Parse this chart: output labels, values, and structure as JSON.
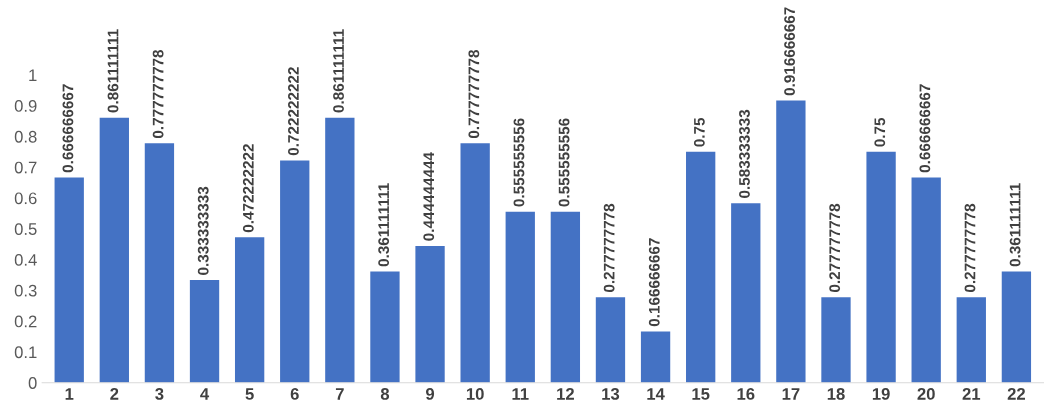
{
  "chart_data": {
    "type": "bar",
    "categories": [
      "1",
      "2",
      "3",
      "4",
      "5",
      "6",
      "7",
      "8",
      "9",
      "10",
      "11",
      "12",
      "13",
      "14",
      "15",
      "16",
      "17",
      "18",
      "19",
      "20",
      "21",
      "22"
    ],
    "values": [
      0.666666667,
      0.861111111,
      0.777777778,
      0.333333333,
      0.472222222,
      0.722222222,
      0.861111111,
      0.361111111,
      0.444444444,
      0.777777778,
      0.555555556,
      0.555555556,
      0.277777778,
      0.166666667,
      0.75,
      0.583333333,
      0.916666667,
      0.277777778,
      0.75,
      0.666666667,
      0.277777778,
      0.361111111
    ],
    "color": "#4472c4",
    "ylim": [
      0,
      1
    ],
    "yticks": [
      0,
      {
        "value": 0.1,
        "label": "0.1"
      },
      {
        "value": 0.2,
        "label": "0.2"
      },
      {
        "value": 0.3,
        "label": "0.3"
      },
      {
        "value": 0.4,
        "label": "0.4"
      },
      {
        "value": 0.5,
        "label": "0.5"
      },
      {
        "value": 0.6,
        "label": "0.6"
      },
      {
        "value": 0.7,
        "label": "0.7"
      },
      {
        "value": 0.8,
        "label": "0.8"
      },
      {
        "value": 0.9,
        "label": "0.9"
      },
      1
    ],
    "data_labels": true
  }
}
